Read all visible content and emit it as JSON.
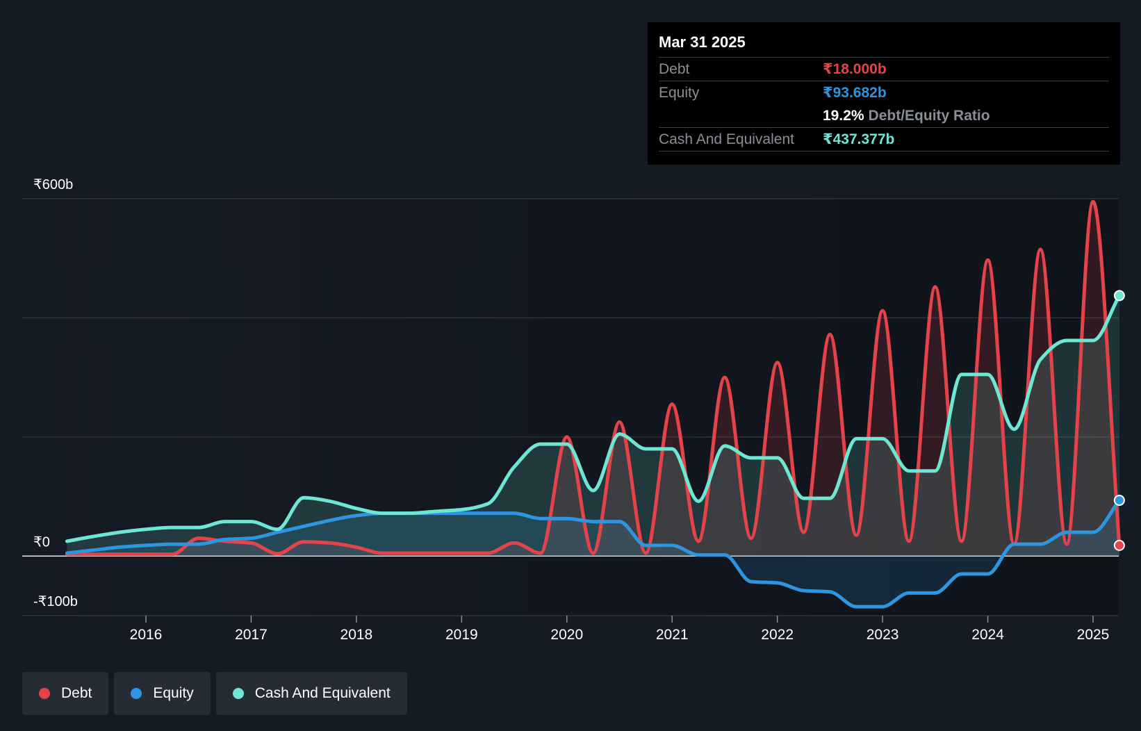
{
  "tooltip": {
    "date": "Mar 31 2025",
    "debt_label": "Debt",
    "debt_value": "₹18.000b",
    "equity_label": "Equity",
    "equity_value": "₹93.682b",
    "ratio_value": "19.2%",
    "ratio_label": "Debt/Equity Ratio",
    "cash_label": "Cash And Equivalent",
    "cash_value": "₹437.377b"
  },
  "legend": [
    {
      "label": "Debt",
      "color": "#e5434a"
    },
    {
      "label": "Equity",
      "color": "#2e96e0"
    },
    {
      "label": "Cash And Equivalent",
      "color": "#6ee6d3"
    }
  ],
  "chart_data": {
    "type": "line",
    "title": "",
    "xlabel": "",
    "ylabel": "",
    "ylim": [
      -100,
      600
    ],
    "xlim": [
      2015.25,
      2025.25
    ],
    "y_tick_labels": [
      {
        "value": 600,
        "label": "₹600b"
      },
      {
        "value": 0,
        "label": "₹0"
      },
      {
        "value": -100,
        "label": "-₹100b"
      }
    ],
    "gridlines": [
      600,
      400,
      200,
      0,
      -100
    ],
    "x_ticks": [
      2016,
      2017,
      2018,
      2019,
      2020,
      2021,
      2022,
      2023,
      2024,
      2025
    ],
    "x_tick_labels": [
      "2016",
      "2017",
      "2018",
      "2019",
      "2020",
      "2021",
      "2022",
      "2023",
      "2024",
      "2025"
    ],
    "series": [
      {
        "name": "Debt",
        "color": "#e5434a",
        "points": [
          [
            2015.25,
            3
          ],
          [
            2016.25,
            3
          ],
          [
            2016.5,
            30
          ],
          [
            2016.75,
            25
          ],
          [
            2017.0,
            22
          ],
          [
            2017.25,
            4
          ],
          [
            2017.5,
            24
          ],
          [
            2017.75,
            22
          ],
          [
            2018.0,
            15
          ],
          [
            2018.25,
            5
          ],
          [
            2019.0,
            5
          ],
          [
            2019.25,
            5
          ],
          [
            2019.5,
            22
          ],
          [
            2019.75,
            5
          ],
          [
            2020.0,
            200
          ],
          [
            2020.25,
            5
          ],
          [
            2020.5,
            225
          ],
          [
            2020.75,
            5
          ],
          [
            2021.0,
            255
          ],
          [
            2021.25,
            25
          ],
          [
            2021.5,
            300
          ],
          [
            2021.75,
            30
          ],
          [
            2022.0,
            325
          ],
          [
            2022.25,
            40
          ],
          [
            2022.5,
            372
          ],
          [
            2022.75,
            35
          ],
          [
            2023.0,
            412
          ],
          [
            2023.25,
            25
          ],
          [
            2023.5,
            452
          ],
          [
            2023.75,
            25
          ],
          [
            2024.0,
            497
          ],
          [
            2024.25,
            20
          ],
          [
            2024.5,
            515
          ],
          [
            2024.75,
            20
          ],
          [
            2025.0,
            595
          ],
          [
            2025.25,
            18
          ]
        ]
      },
      {
        "name": "Equity",
        "color": "#2e96e0",
        "points": [
          [
            2015.25,
            5
          ],
          [
            2015.5,
            10
          ],
          [
            2015.75,
            15
          ],
          [
            2016.0,
            18
          ],
          [
            2016.25,
            20
          ],
          [
            2016.5,
            20
          ],
          [
            2016.75,
            28
          ],
          [
            2017.0,
            30
          ],
          [
            2017.25,
            40
          ],
          [
            2017.5,
            50
          ],
          [
            2017.75,
            60
          ],
          [
            2018.0,
            68
          ],
          [
            2018.25,
            72
          ],
          [
            2019.25,
            72
          ],
          [
            2019.5,
            72
          ],
          [
            2019.75,
            63
          ],
          [
            2020.0,
            63
          ],
          [
            2020.25,
            58
          ],
          [
            2020.5,
            58
          ],
          [
            2020.75,
            18
          ],
          [
            2021.0,
            18
          ],
          [
            2021.25,
            2
          ],
          [
            2021.5,
            2
          ],
          [
            2021.75,
            -43
          ],
          [
            2022.0,
            -45
          ],
          [
            2022.25,
            -58
          ],
          [
            2022.5,
            -60
          ],
          [
            2022.75,
            -85
          ],
          [
            2023.0,
            -85
          ],
          [
            2023.25,
            -62
          ],
          [
            2023.5,
            -62
          ],
          [
            2023.75,
            -30
          ],
          [
            2024.0,
            -30
          ],
          [
            2024.25,
            20
          ],
          [
            2024.5,
            20
          ],
          [
            2024.75,
            40
          ],
          [
            2025.0,
            40
          ],
          [
            2025.25,
            93.7
          ]
        ]
      },
      {
        "name": "Cash And Equivalent",
        "color": "#6ee6d3",
        "points": [
          [
            2015.25,
            25
          ],
          [
            2015.5,
            33
          ],
          [
            2015.75,
            40
          ],
          [
            2016.0,
            45
          ],
          [
            2016.25,
            48
          ],
          [
            2016.5,
            48
          ],
          [
            2016.75,
            58
          ],
          [
            2017.0,
            58
          ],
          [
            2017.25,
            45
          ],
          [
            2017.5,
            98
          ],
          [
            2017.75,
            92
          ],
          [
            2018.0,
            80
          ],
          [
            2018.25,
            72
          ],
          [
            2018.5,
            72
          ],
          [
            2018.75,
            75
          ],
          [
            2019.0,
            78
          ],
          [
            2019.25,
            88
          ],
          [
            2019.5,
            150
          ],
          [
            2019.75,
            188
          ],
          [
            2020.0,
            188
          ],
          [
            2020.25,
            110
          ],
          [
            2020.5,
            205
          ],
          [
            2020.75,
            180
          ],
          [
            2021.0,
            180
          ],
          [
            2021.25,
            92
          ],
          [
            2021.5,
            185
          ],
          [
            2021.75,
            165
          ],
          [
            2022.0,
            165
          ],
          [
            2022.25,
            97
          ],
          [
            2022.5,
            97
          ],
          [
            2022.75,
            197
          ],
          [
            2023.0,
            197
          ],
          [
            2023.25,
            143
          ],
          [
            2023.5,
            143
          ],
          [
            2023.75,
            305
          ],
          [
            2024.0,
            305
          ],
          [
            2024.25,
            213
          ],
          [
            2024.5,
            330
          ],
          [
            2024.75,
            362
          ],
          [
            2025.0,
            362
          ],
          [
            2025.25,
            437.4
          ]
        ]
      }
    ]
  }
}
